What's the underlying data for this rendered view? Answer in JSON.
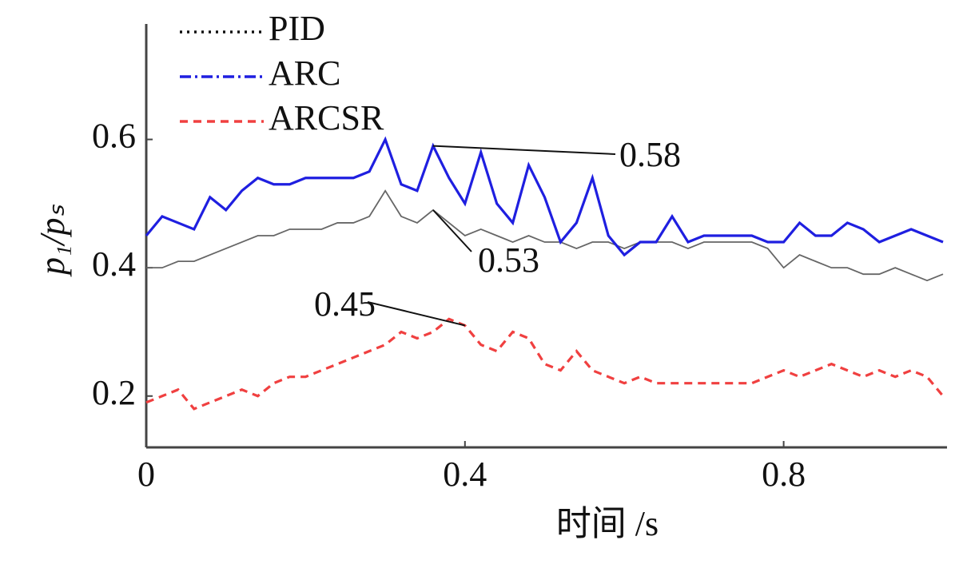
{
  "chart_data": {
    "type": "line",
    "x_label": "时间 /s",
    "y_label": "p₁/pₛ",
    "x": [
      0,
      0.02,
      0.04,
      0.06,
      0.08,
      0.1,
      0.12,
      0.14,
      0.16,
      0.18,
      0.2,
      0.22,
      0.24,
      0.26,
      0.28,
      0.3,
      0.32,
      0.34,
      0.36,
      0.38,
      0.4,
      0.42,
      0.44,
      0.46,
      0.48,
      0.5,
      0.52,
      0.54,
      0.56,
      0.58,
      0.6,
      0.62,
      0.64,
      0.66,
      0.68,
      0.7,
      0.72,
      0.74,
      0.76,
      0.78,
      0.8,
      0.82,
      0.84,
      0.86,
      0.88,
      0.9,
      0.92,
      0.94,
      0.96,
      0.98,
      1.0
    ],
    "series": [
      {
        "name": "PID",
        "color": "#666666",
        "style": "dotted",
        "values": [
          0.4,
          0.4,
          0.41,
          0.41,
          0.42,
          0.43,
          0.44,
          0.45,
          0.45,
          0.46,
          0.46,
          0.46,
          0.47,
          0.47,
          0.48,
          0.52,
          0.48,
          0.47,
          0.49,
          0.47,
          0.45,
          0.46,
          0.45,
          0.44,
          0.45,
          0.44,
          0.44,
          0.43,
          0.44,
          0.44,
          0.43,
          0.44,
          0.44,
          0.44,
          0.43,
          0.44,
          0.44,
          0.44,
          0.44,
          0.43,
          0.4,
          0.42,
          0.41,
          0.4,
          0.4,
          0.39,
          0.39,
          0.4,
          0.39,
          0.38,
          0.39
        ]
      },
      {
        "name": "ARC",
        "color": "#1f1fe0",
        "style": "dashdot",
        "values": [
          0.45,
          0.48,
          0.47,
          0.46,
          0.51,
          0.49,
          0.52,
          0.54,
          0.53,
          0.53,
          0.54,
          0.54,
          0.54,
          0.54,
          0.55,
          0.6,
          0.53,
          0.52,
          0.59,
          0.54,
          0.5,
          0.58,
          0.5,
          0.47,
          0.56,
          0.51,
          0.44,
          0.47,
          0.54,
          0.45,
          0.42,
          0.44,
          0.44,
          0.48,
          0.44,
          0.45,
          0.45,
          0.45,
          0.45,
          0.44,
          0.44,
          0.47,
          0.45,
          0.45,
          0.47,
          0.46,
          0.44,
          0.45,
          0.46,
          0.45,
          0.44
        ]
      },
      {
        "name": "ARCSR",
        "color": "#f04040",
        "style": "dashed",
        "values": [
          0.19,
          0.2,
          0.21,
          0.18,
          0.19,
          0.2,
          0.21,
          0.2,
          0.22,
          0.23,
          0.23,
          0.24,
          0.25,
          0.26,
          0.27,
          0.28,
          0.3,
          0.29,
          0.3,
          0.32,
          0.31,
          0.28,
          0.27,
          0.3,
          0.29,
          0.25,
          0.24,
          0.27,
          0.24,
          0.23,
          0.22,
          0.23,
          0.22,
          0.22,
          0.22,
          0.22,
          0.22,
          0.22,
          0.22,
          0.23,
          0.24,
          0.23,
          0.24,
          0.25,
          0.24,
          0.23,
          0.24,
          0.23,
          0.24,
          0.23,
          0.2
        ]
      }
    ],
    "annotations": [
      {
        "text": "0.58",
        "x": 0.36
      },
      {
        "text": "0.53",
        "x": 0.36
      },
      {
        "text": "0.45",
        "x": 0.4
      }
    ],
    "xlim": [
      0,
      1.0
    ],
    "ylim": [
      0.12,
      0.78
    ],
    "xticks": [
      {
        "value": 0,
        "label": "0"
      },
      0.4,
      0.8
    ],
    "yticks": [
      0.2,
      0.4,
      0.6
    ],
    "grid": false
  }
}
